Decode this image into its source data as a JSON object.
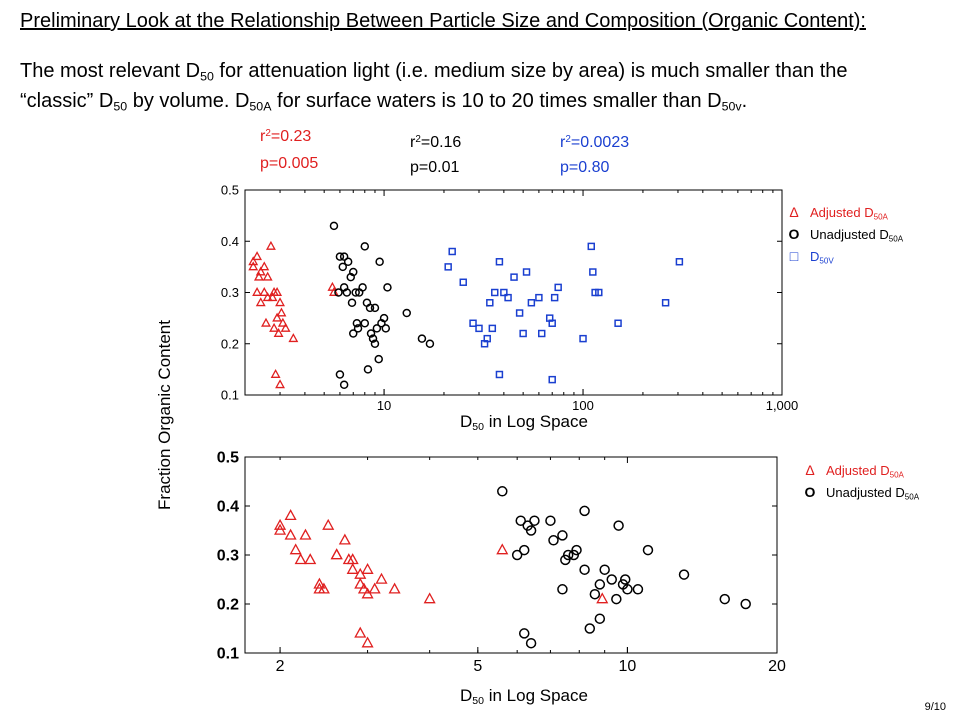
{
  "title": "Preliminary Look at the Relationship Between Particle Size and Composition (Organic Content):",
  "subtitle": {
    "line1_a": "The most relevant D",
    "line1_sub": "50",
    "line1_b": " for attenuation light (i.e. medium size by area) is much smaller than the",
    "line2_a": "“classic” D",
    "line2_sub1": "50",
    "line2_b": " by volume. D",
    "line2_sub2": "50A",
    "line2_c": " for surface waters is 10 to 20 times smaller than D",
    "line2_sub3": "50v",
    "line2_d": "."
  },
  "stats": [
    {
      "r_label": "r",
      "r_sup": "2",
      "r_value": "=0.23",
      "p": "p=0.005",
      "color": "#e02020"
    },
    {
      "r_label": "r",
      "r_sup": "2",
      "r_value": "=0.16",
      "p": "p=0.01",
      "color": "#000000"
    },
    {
      "r_label": "r",
      "r_sup": "2",
      "r_value": "=0.0023",
      "p": "p=0.80",
      "color": "#1a3fd0"
    }
  ],
  "y_axis_label": "Fraction Organic Content",
  "page_number": "9/10",
  "legend_top": [
    {
      "symbol": "Δ",
      "text": "Adjusted D",
      "sub": "50A",
      "color": "#e02020",
      "marker": "triangle"
    },
    {
      "symbol": "O",
      "text": "Unadjusted D",
      "sub": "50A",
      "color": "#000000",
      "marker": "circle"
    },
    {
      "symbol": "□",
      "text": "D",
      "sub": "50V",
      "color": "#1a3fd0",
      "marker": "square"
    }
  ],
  "legend_bottom": [
    {
      "symbol": "Δ",
      "text": "Adjusted D",
      "sub": "50A",
      "color": "#e02020",
      "marker": "triangle"
    },
    {
      "symbol": "O",
      "text": "Unadjusted D",
      "sub": "50A",
      "color": "#000000",
      "marker": "circle"
    }
  ],
  "chart_data": [
    {
      "type": "scatter",
      "xscale": "log",
      "xlim": [
        2,
        1000
      ],
      "ylim": [
        0.1,
        0.5
      ],
      "xticks": [
        10,
        100,
        1000
      ],
      "xtick_labels": [
        "10",
        "100",
        "1,000"
      ],
      "yticks": [
        0.1,
        0.2,
        0.3,
        0.4,
        0.5
      ],
      "ytick_labels": [
        "0.1",
        "0.2",
        "0.3",
        "0.4",
        "0.5"
      ],
      "xlabel_a": "D",
      "xlabel_sub": "50",
      "xlabel_b": " in Log Space",
      "grid": false,
      "legend_position": "right",
      "series": [
        {
          "marker": "triangle",
          "color": "#e02020",
          "x": [
            2.2,
            2.3,
            2.4,
            2.2,
            2.35,
            2.5,
            2.6,
            2.7,
            2.3,
            2.5,
            2.8,
            2.9,
            2.6,
            2.75,
            2.4,
            3.0,
            2.9,
            2.55,
            3.1,
            3.2,
            2.8,
            2.95,
            3.05,
            3.5,
            2.85,
            3.0,
            5.5,
            5.6
          ],
          "y": [
            0.36,
            0.37,
            0.34,
            0.35,
            0.33,
            0.35,
            0.33,
            0.39,
            0.3,
            0.3,
            0.3,
            0.3,
            0.29,
            0.29,
            0.28,
            0.28,
            0.25,
            0.24,
            0.24,
            0.23,
            0.23,
            0.22,
            0.26,
            0.21,
            0.14,
            0.12,
            0.31,
            0.3
          ]
        },
        {
          "marker": "circle",
          "color": "#000000",
          "x": [
            5.6,
            6.0,
            6.3,
            6.6,
            6.2,
            7.0,
            6.8,
            8.0,
            7.2,
            6.5,
            7.5,
            6.3,
            6.9,
            7.8,
            8.5,
            9.5,
            10.4,
            8.2,
            9.0,
            10.0,
            7.3,
            8.6,
            8.8,
            9.2,
            9.7,
            10.2,
            8.0,
            7.4,
            7.0,
            9.0,
            13.0,
            15.5,
            17.0,
            9.4,
            8.3,
            6.0,
            6.3,
            5.9
          ],
          "y": [
            0.43,
            0.37,
            0.37,
            0.36,
            0.35,
            0.34,
            0.33,
            0.39,
            0.3,
            0.3,
            0.3,
            0.31,
            0.28,
            0.31,
            0.27,
            0.36,
            0.31,
            0.28,
            0.27,
            0.25,
            0.24,
            0.22,
            0.21,
            0.23,
            0.24,
            0.23,
            0.24,
            0.23,
            0.22,
            0.2,
            0.26,
            0.21,
            0.2,
            0.17,
            0.15,
            0.14,
            0.12,
            0.3
          ]
        },
        {
          "marker": "square",
          "color": "#1a3fd0",
          "x": [
            22,
            21,
            25,
            28,
            30,
            33,
            36,
            34,
            38,
            40,
            45,
            42,
            48,
            52,
            55,
            60,
            68,
            70,
            72,
            75,
            110,
            112,
            115,
            150,
            260,
            305,
            38,
            70,
            62,
            35,
            32,
            50,
            100,
            120
          ],
          "y": [
            0.38,
            0.35,
            0.32,
            0.24,
            0.23,
            0.21,
            0.3,
            0.28,
            0.36,
            0.3,
            0.33,
            0.29,
            0.26,
            0.34,
            0.28,
            0.29,
            0.25,
            0.24,
            0.29,
            0.31,
            0.39,
            0.34,
            0.3,
            0.24,
            0.28,
            0.36,
            0.14,
            0.13,
            0.22,
            0.23,
            0.2,
            0.22,
            0.21,
            0.3
          ]
        }
      ]
    },
    {
      "type": "scatter",
      "xscale": "log",
      "xlim": [
        1.7,
        20
      ],
      "ylim": [
        0.1,
        0.5
      ],
      "xticks": [
        2,
        5,
        10,
        20
      ],
      "xtick_labels": [
        "2",
        "5",
        "10",
        "20"
      ],
      "yticks": [
        0.1,
        0.2,
        0.3,
        0.4,
        0.5
      ],
      "ytick_labels": [
        "0.1",
        "0.2",
        "0.3",
        "0.4",
        "0.5"
      ],
      "xlabel_a": "D",
      "xlabel_sub": "50",
      "xlabel_b": " in Log Space",
      "grid": false,
      "legend_position": "right",
      "series": [
        {
          "marker": "triangle",
          "color": "#e02020",
          "x": [
            2.0,
            2.0,
            2.1,
            2.1,
            2.15,
            2.2,
            2.25,
            2.3,
            2.4,
            2.45,
            2.5,
            2.6,
            2.6,
            2.7,
            2.75,
            2.8,
            2.8,
            2.9,
            2.9,
            2.95,
            3.0,
            3.0,
            3.1,
            3.2,
            3.4,
            4.0,
            2.4,
            2.9,
            3.0,
            5.6,
            8.9
          ],
          "y": [
            0.36,
            0.35,
            0.38,
            0.34,
            0.31,
            0.29,
            0.34,
            0.29,
            0.24,
            0.23,
            0.36,
            0.3,
            0.3,
            0.33,
            0.29,
            0.29,
            0.27,
            0.26,
            0.24,
            0.23,
            0.27,
            0.22,
            0.23,
            0.25,
            0.23,
            0.21,
            0.23,
            0.14,
            0.12,
            0.31,
            0.21
          ]
        },
        {
          "marker": "circle",
          "color": "#000000",
          "x": [
            5.6,
            6.1,
            6.3,
            6.5,
            6.4,
            7.0,
            7.4,
            8.2,
            7.6,
            6.0,
            7.9,
            6.2,
            7.1,
            7.8,
            9.0,
            9.6,
            11.0,
            8.2,
            9.3,
            9.8,
            10.0,
            8.8,
            7.4,
            7.5,
            8.6,
            13.0,
            15.7,
            17.3,
            8.8,
            8.4,
            6.2,
            6.4,
            9.9,
            10.5,
            9.5
          ],
          "y": [
            0.43,
            0.37,
            0.36,
            0.37,
            0.35,
            0.37,
            0.34,
            0.39,
            0.3,
            0.3,
            0.31,
            0.31,
            0.33,
            0.3,
            0.27,
            0.36,
            0.31,
            0.27,
            0.25,
            0.24,
            0.23,
            0.24,
            0.23,
            0.29,
            0.22,
            0.26,
            0.21,
            0.2,
            0.17,
            0.15,
            0.14,
            0.12,
            0.25,
            0.23,
            0.21
          ]
        }
      ]
    }
  ]
}
